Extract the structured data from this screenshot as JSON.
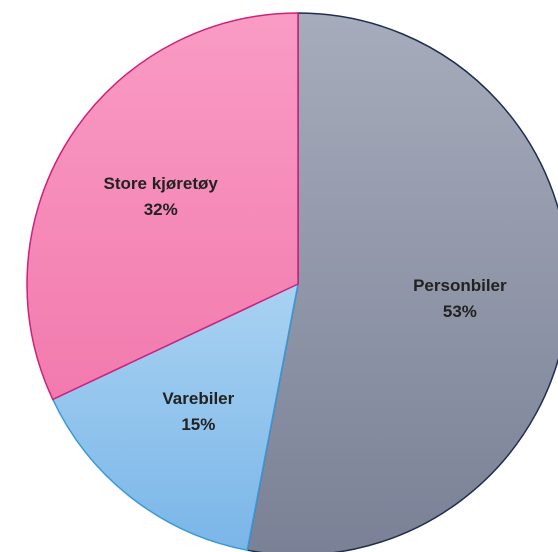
{
  "chart_data": {
    "type": "pie",
    "categories": [
      "Personbiler",
      "Varebiler",
      "Store kjøretøy"
    ],
    "values": [
      53,
      15,
      32
    ],
    "value_labels": [
      "53%",
      "15%",
      "32%"
    ],
    "colors": [
      "#8c93a5",
      "#93c4ee",
      "#f585b5"
    ],
    "edge_colors": [
      "#1f2d4e",
      "#3a9ad9",
      "#d0207a"
    ]
  }
}
